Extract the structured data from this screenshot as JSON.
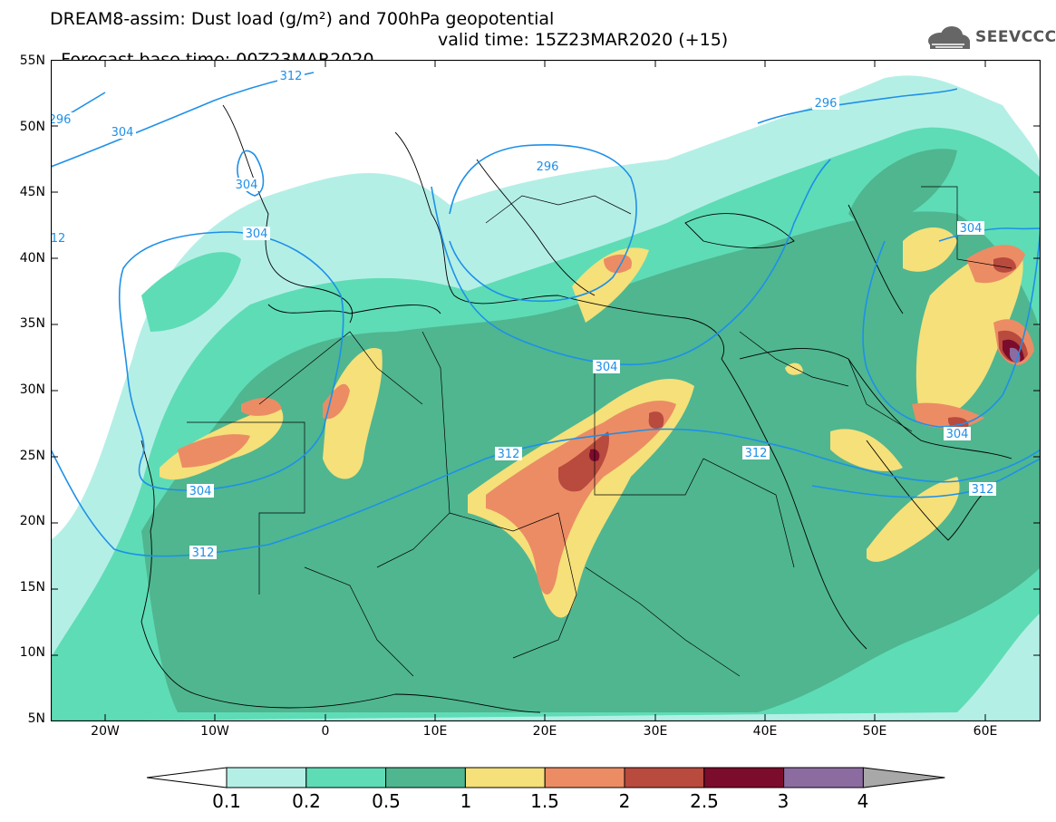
{
  "header": {
    "title_line1": "DREAM8-assim: Dust load (g/m²) and 700hPa geopotential",
    "base_time": "Forecast base time: 00Z23MAR2020",
    "valid_time": "valid time: 15Z23MAR2020 (+15)"
  },
  "logo": {
    "text": "SEEVCCC",
    "icon": "cloud-icon"
  },
  "axes": {
    "lat_labels": [
      "55N",
      "50N",
      "45N",
      "40N",
      "35N",
      "30N",
      "25N",
      "20N",
      "15N",
      "10N",
      "5N"
    ],
    "lon_labels": [
      "20W",
      "10W",
      "0",
      "10E",
      "20E",
      "30E",
      "40E",
      "50E",
      "60E"
    ]
  },
  "contours": {
    "color": "#1e90e8",
    "labels": [
      "312",
      "296",
      "304",
      "304",
      "296",
      "296",
      "12",
      "304",
      "304",
      "304",
      "312",
      "304",
      "312",
      "312",
      "304",
      "312"
    ]
  },
  "colorbar": {
    "labels": [
      "0.1",
      "0.2",
      "0.5",
      "1",
      "1.5",
      "2",
      "2.5",
      "3",
      "4"
    ],
    "colors": [
      "#b4efe6",
      "#5edcb6",
      "#4fb690",
      "#f5e07a",
      "#ec8c64",
      "#b84a3e",
      "#7c0c2c",
      "#8c6ca0",
      "#a8a8a8"
    ]
  }
}
